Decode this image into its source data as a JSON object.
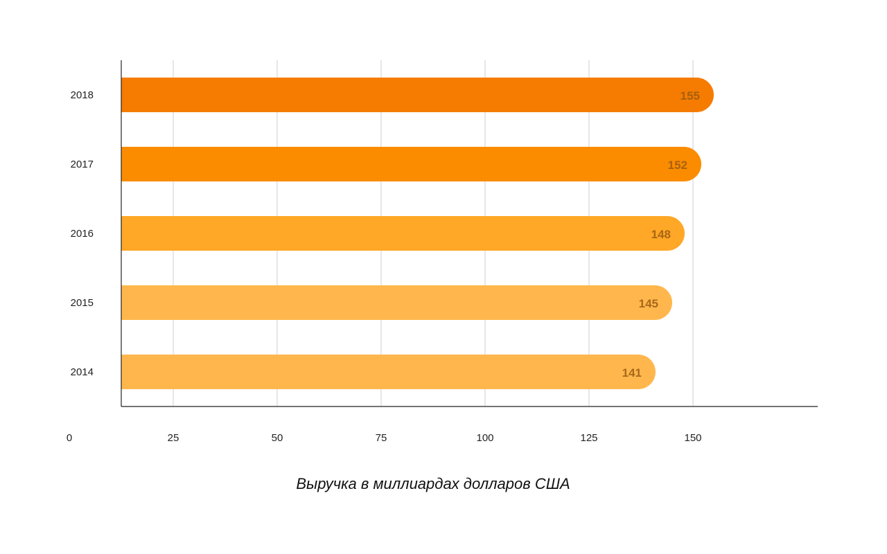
{
  "chart_data": {
    "type": "bar",
    "orientation": "horizontal",
    "categories": [
      "2018",
      "2017",
      "2016",
      "2015",
      "2014"
    ],
    "values": [
      155,
      152,
      148,
      145,
      141
    ],
    "colors": [
      "#F57C00",
      "#FB8C00",
      "#FFA726",
      "#FFB74D",
      "#FFB74D"
    ],
    "data_labels": [
      "155",
      "152",
      "148",
      "145",
      "141"
    ],
    "x_ticks": [
      0,
      25,
      50,
      75,
      100,
      125,
      150
    ],
    "x_tick_labels": [
      "0",
      "25",
      "50",
      "75",
      "100",
      "125",
      "150"
    ],
    "xlim": [
      0,
      175
    ],
    "xlabel": "Выручка в миллиардах долларов США",
    "ylabel": "",
    "title": "",
    "grid": true,
    "legend": "none"
  }
}
